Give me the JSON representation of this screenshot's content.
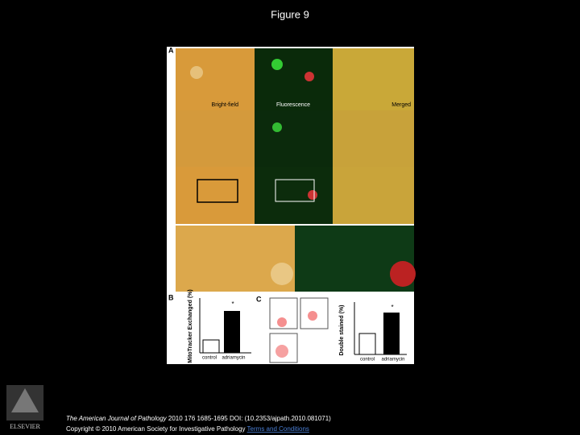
{
  "header": {
    "title": "Figure 9"
  },
  "figure": {
    "panel_labels": [
      "A",
      "B",
      "C"
    ],
    "column_labels": [
      "Bright-field",
      "Fluorescence",
      "Merged"
    ],
    "panel_b": {
      "y_label": "MitoTracker Exchanged (%)",
      "categories": [
        "control",
        "adriamycin"
      ],
      "significance": "*"
    },
    "panel_c": {
      "y_label": "Double stained (%)",
      "categories": [
        "control",
        "adriamycin"
      ],
      "significance": "*"
    }
  },
  "footer": {
    "journal": "The American Journal of Pathology",
    "citation": " 2010 176 1685-1695 DOI: (10.2353/ajpath.2010.081071)",
    "copyright": "Copyright © 2010 American Society for Investigative Pathology ",
    "terms_link": "Terms and Conditions"
  },
  "logo": {
    "text": "ELSEVIER"
  }
}
